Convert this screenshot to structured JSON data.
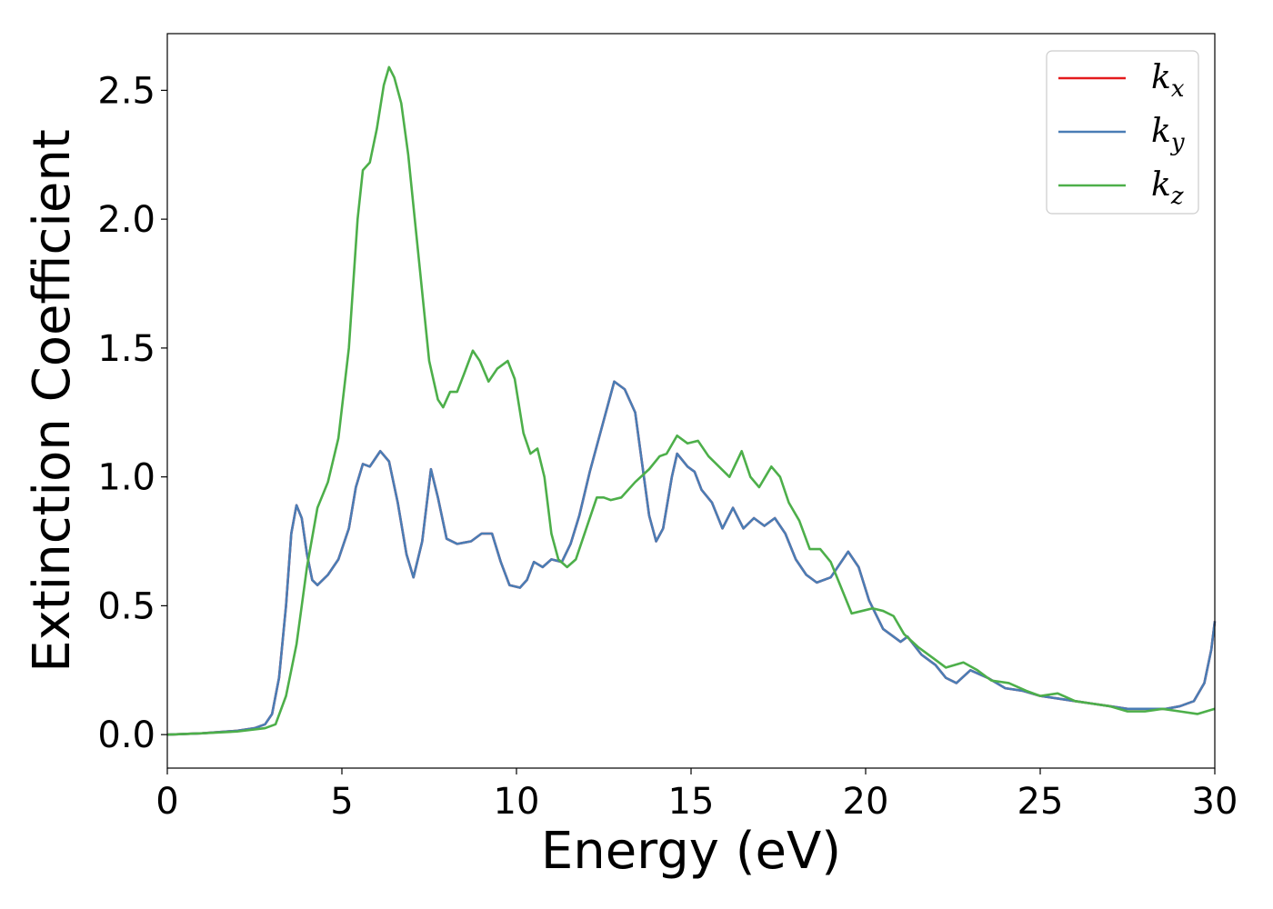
{
  "chart_data": {
    "type": "line",
    "title": "",
    "xlabel": "Energy (eV)",
    "ylabel": "Extinction Coefficient",
    "xlim": [
      0,
      30
    ],
    "ylim": [
      -0.13,
      2.72
    ],
    "xticks": [
      0,
      5,
      10,
      15,
      20,
      25,
      30
    ],
    "xtick_labels": [
      "0",
      "5",
      "10",
      "15",
      "20",
      "25",
      "30"
    ],
    "yticks": [
      0.0,
      0.5,
      1.0,
      1.5,
      2.0,
      2.5
    ],
    "ytick_labels": [
      "0.0",
      "0.5",
      "1.0",
      "1.5",
      "2.0",
      "2.5"
    ],
    "grid": false,
    "legend_position": "top-right",
    "series": [
      {
        "name": "k_x",
        "legend": {
          "base": "k",
          "sub": "x"
        },
        "color": "#e41a1c",
        "points": [
          [
            0,
            0
          ],
          [
            1,
            0.005
          ],
          [
            2,
            0.015
          ],
          [
            2.5,
            0.025
          ],
          [
            2.8,
            0.04
          ],
          [
            3.0,
            0.08
          ],
          [
            3.2,
            0.22
          ],
          [
            3.4,
            0.5
          ],
          [
            3.55,
            0.78
          ],
          [
            3.7,
            0.89
          ],
          [
            3.85,
            0.84
          ],
          [
            4.0,
            0.7
          ],
          [
            4.15,
            0.6
          ],
          [
            4.3,
            0.58
          ],
          [
            4.6,
            0.62
          ],
          [
            4.9,
            0.68
          ],
          [
            5.2,
            0.8
          ],
          [
            5.4,
            0.96
          ],
          [
            5.6,
            1.05
          ],
          [
            5.8,
            1.04
          ],
          [
            6.1,
            1.1
          ],
          [
            6.35,
            1.06
          ],
          [
            6.6,
            0.9
          ],
          [
            6.85,
            0.7
          ],
          [
            7.05,
            0.61
          ],
          [
            7.3,
            0.75
          ],
          [
            7.55,
            1.03
          ],
          [
            7.75,
            0.92
          ],
          [
            8.0,
            0.76
          ],
          [
            8.3,
            0.74
          ],
          [
            8.7,
            0.75
          ],
          [
            9.0,
            0.78
          ],
          [
            9.3,
            0.78
          ],
          [
            9.55,
            0.67
          ],
          [
            9.8,
            0.58
          ],
          [
            10.1,
            0.57
          ],
          [
            10.3,
            0.6
          ],
          [
            10.5,
            0.67
          ],
          [
            10.75,
            0.65
          ],
          [
            11.0,
            0.68
          ],
          [
            11.3,
            0.67
          ],
          [
            11.55,
            0.74
          ],
          [
            11.8,
            0.85
          ],
          [
            12.1,
            1.02
          ],
          [
            12.4,
            1.17
          ],
          [
            12.8,
            1.37
          ],
          [
            13.1,
            1.34
          ],
          [
            13.4,
            1.25
          ],
          [
            13.6,
            1.05
          ],
          [
            13.8,
            0.85
          ],
          [
            14.0,
            0.75
          ],
          [
            14.2,
            0.8
          ],
          [
            14.45,
            1.0
          ],
          [
            14.6,
            1.09
          ],
          [
            14.9,
            1.04
          ],
          [
            15.1,
            1.02
          ],
          [
            15.3,
            0.95
          ],
          [
            15.6,
            0.9
          ],
          [
            15.9,
            0.8
          ],
          [
            16.2,
            0.88
          ],
          [
            16.5,
            0.8
          ],
          [
            16.8,
            0.84
          ],
          [
            17.1,
            0.81
          ],
          [
            17.4,
            0.84
          ],
          [
            17.7,
            0.78
          ],
          [
            18.0,
            0.68
          ],
          [
            18.3,
            0.62
          ],
          [
            18.6,
            0.59
          ],
          [
            19.0,
            0.61
          ],
          [
            19.5,
            0.71
          ],
          [
            19.8,
            0.65
          ],
          [
            20.1,
            0.52
          ],
          [
            20.5,
            0.41
          ],
          [
            21.0,
            0.36
          ],
          [
            21.2,
            0.38
          ],
          [
            21.6,
            0.31
          ],
          [
            22.0,
            0.27
          ],
          [
            22.3,
            0.22
          ],
          [
            22.6,
            0.2
          ],
          [
            23.0,
            0.25
          ],
          [
            23.5,
            0.22
          ],
          [
            24.0,
            0.18
          ],
          [
            24.5,
            0.17
          ],
          [
            25.0,
            0.15
          ],
          [
            25.5,
            0.14
          ],
          [
            26.0,
            0.13
          ],
          [
            26.5,
            0.12
          ],
          [
            27.0,
            0.11
          ],
          [
            27.5,
            0.1
          ],
          [
            28.0,
            0.1
          ],
          [
            28.6,
            0.1
          ],
          [
            29.0,
            0.11
          ],
          [
            29.4,
            0.13
          ],
          [
            29.7,
            0.2
          ],
          [
            29.9,
            0.33
          ],
          [
            30.0,
            0.44
          ]
        ]
      },
      {
        "name": "k_y",
        "legend": {
          "base": "k",
          "sub": "y"
        },
        "color": "#4a7db5",
        "points": [
          [
            0,
            0
          ],
          [
            1,
            0.005
          ],
          [
            2,
            0.015
          ],
          [
            2.5,
            0.025
          ],
          [
            2.8,
            0.04
          ],
          [
            3.0,
            0.08
          ],
          [
            3.2,
            0.22
          ],
          [
            3.4,
            0.5
          ],
          [
            3.55,
            0.78
          ],
          [
            3.7,
            0.89
          ],
          [
            3.85,
            0.84
          ],
          [
            4.0,
            0.7
          ],
          [
            4.15,
            0.6
          ],
          [
            4.3,
            0.58
          ],
          [
            4.6,
            0.62
          ],
          [
            4.9,
            0.68
          ],
          [
            5.2,
            0.8
          ],
          [
            5.4,
            0.96
          ],
          [
            5.6,
            1.05
          ],
          [
            5.8,
            1.04
          ],
          [
            6.1,
            1.1
          ],
          [
            6.35,
            1.06
          ],
          [
            6.6,
            0.9
          ],
          [
            6.85,
            0.7
          ],
          [
            7.05,
            0.61
          ],
          [
            7.3,
            0.75
          ],
          [
            7.55,
            1.03
          ],
          [
            7.75,
            0.92
          ],
          [
            8.0,
            0.76
          ],
          [
            8.3,
            0.74
          ],
          [
            8.7,
            0.75
          ],
          [
            9.0,
            0.78
          ],
          [
            9.3,
            0.78
          ],
          [
            9.55,
            0.67
          ],
          [
            9.8,
            0.58
          ],
          [
            10.1,
            0.57
          ],
          [
            10.3,
            0.6
          ],
          [
            10.5,
            0.67
          ],
          [
            10.75,
            0.65
          ],
          [
            11.0,
            0.68
          ],
          [
            11.3,
            0.67
          ],
          [
            11.55,
            0.74
          ],
          [
            11.8,
            0.85
          ],
          [
            12.1,
            1.02
          ],
          [
            12.4,
            1.17
          ],
          [
            12.8,
            1.37
          ],
          [
            13.1,
            1.34
          ],
          [
            13.4,
            1.25
          ],
          [
            13.6,
            1.05
          ],
          [
            13.8,
            0.85
          ],
          [
            14.0,
            0.75
          ],
          [
            14.2,
            0.8
          ],
          [
            14.45,
            1.0
          ],
          [
            14.6,
            1.09
          ],
          [
            14.9,
            1.04
          ],
          [
            15.1,
            1.02
          ],
          [
            15.3,
            0.95
          ],
          [
            15.6,
            0.9
          ],
          [
            15.9,
            0.8
          ],
          [
            16.2,
            0.88
          ],
          [
            16.5,
            0.8
          ],
          [
            16.8,
            0.84
          ],
          [
            17.1,
            0.81
          ],
          [
            17.4,
            0.84
          ],
          [
            17.7,
            0.78
          ],
          [
            18.0,
            0.68
          ],
          [
            18.3,
            0.62
          ],
          [
            18.6,
            0.59
          ],
          [
            19.0,
            0.61
          ],
          [
            19.5,
            0.71
          ],
          [
            19.8,
            0.65
          ],
          [
            20.1,
            0.52
          ],
          [
            20.5,
            0.41
          ],
          [
            21.0,
            0.36
          ],
          [
            21.2,
            0.38
          ],
          [
            21.6,
            0.31
          ],
          [
            22.0,
            0.27
          ],
          [
            22.3,
            0.22
          ],
          [
            22.6,
            0.2
          ],
          [
            23.0,
            0.25
          ],
          [
            23.5,
            0.22
          ],
          [
            24.0,
            0.18
          ],
          [
            24.5,
            0.17
          ],
          [
            25.0,
            0.15
          ],
          [
            25.5,
            0.14
          ],
          [
            26.0,
            0.13
          ],
          [
            26.5,
            0.12
          ],
          [
            27.0,
            0.11
          ],
          [
            27.5,
            0.1
          ],
          [
            28.0,
            0.1
          ],
          [
            28.6,
            0.1
          ],
          [
            29.0,
            0.11
          ],
          [
            29.4,
            0.13
          ],
          [
            29.7,
            0.2
          ],
          [
            29.9,
            0.33
          ],
          [
            30.0,
            0.44
          ]
        ]
      },
      {
        "name": "k_z",
        "legend": {
          "base": "k",
          "sub": "z"
        },
        "color": "#4daf4a",
        "points": [
          [
            0,
            0
          ],
          [
            1,
            0.005
          ],
          [
            2,
            0.012
          ],
          [
            2.8,
            0.025
          ],
          [
            3.1,
            0.04
          ],
          [
            3.4,
            0.15
          ],
          [
            3.7,
            0.35
          ],
          [
            4.0,
            0.65
          ],
          [
            4.3,
            0.88
          ],
          [
            4.6,
            0.98
          ],
          [
            4.9,
            1.15
          ],
          [
            5.2,
            1.5
          ],
          [
            5.45,
            2.0
          ],
          [
            5.6,
            2.19
          ],
          [
            5.8,
            2.22
          ],
          [
            6.0,
            2.35
          ],
          [
            6.2,
            2.52
          ],
          [
            6.35,
            2.59
          ],
          [
            6.5,
            2.55
          ],
          [
            6.7,
            2.45
          ],
          [
            6.9,
            2.25
          ],
          [
            7.2,
            1.85
          ],
          [
            7.5,
            1.45
          ],
          [
            7.75,
            1.3
          ],
          [
            7.9,
            1.27
          ],
          [
            8.1,
            1.33
          ],
          [
            8.3,
            1.33
          ],
          [
            8.5,
            1.4
          ],
          [
            8.75,
            1.49
          ],
          [
            8.95,
            1.45
          ],
          [
            9.2,
            1.37
          ],
          [
            9.45,
            1.42
          ],
          [
            9.75,
            1.45
          ],
          [
            9.95,
            1.38
          ],
          [
            10.2,
            1.17
          ],
          [
            10.4,
            1.09
          ],
          [
            10.6,
            1.11
          ],
          [
            10.8,
            1.0
          ],
          [
            11.0,
            0.78
          ],
          [
            11.2,
            0.68
          ],
          [
            11.45,
            0.65
          ],
          [
            11.7,
            0.68
          ],
          [
            12.0,
            0.8
          ],
          [
            12.3,
            0.92
          ],
          [
            12.5,
            0.92
          ],
          [
            12.7,
            0.91
          ],
          [
            13.0,
            0.92
          ],
          [
            13.4,
            0.98
          ],
          [
            13.8,
            1.03
          ],
          [
            14.1,
            1.08
          ],
          [
            14.3,
            1.09
          ],
          [
            14.6,
            1.16
          ],
          [
            14.9,
            1.13
          ],
          [
            15.2,
            1.14
          ],
          [
            15.5,
            1.08
          ],
          [
            15.8,
            1.04
          ],
          [
            16.1,
            1.0
          ],
          [
            16.45,
            1.1
          ],
          [
            16.7,
            1.0
          ],
          [
            16.95,
            0.96
          ],
          [
            17.3,
            1.04
          ],
          [
            17.55,
            1.0
          ],
          [
            17.8,
            0.9
          ],
          [
            18.1,
            0.83
          ],
          [
            18.4,
            0.72
          ],
          [
            18.7,
            0.72
          ],
          [
            19.0,
            0.67
          ],
          [
            19.3,
            0.57
          ],
          [
            19.6,
            0.47
          ],
          [
            19.9,
            0.48
          ],
          [
            20.2,
            0.49
          ],
          [
            20.5,
            0.48
          ],
          [
            20.8,
            0.46
          ],
          [
            21.1,
            0.39
          ],
          [
            21.5,
            0.34
          ],
          [
            21.9,
            0.3
          ],
          [
            22.3,
            0.26
          ],
          [
            22.8,
            0.28
          ],
          [
            23.2,
            0.25
          ],
          [
            23.6,
            0.21
          ],
          [
            24.1,
            0.2
          ],
          [
            24.6,
            0.17
          ],
          [
            25.0,
            0.15
          ],
          [
            25.5,
            0.16
          ],
          [
            26.0,
            0.13
          ],
          [
            26.5,
            0.12
          ],
          [
            27.0,
            0.11
          ],
          [
            27.5,
            0.09
          ],
          [
            28.0,
            0.09
          ],
          [
            28.5,
            0.1
          ],
          [
            29.0,
            0.09
          ],
          [
            29.5,
            0.08
          ],
          [
            30.0,
            0.1
          ]
        ]
      }
    ]
  }
}
